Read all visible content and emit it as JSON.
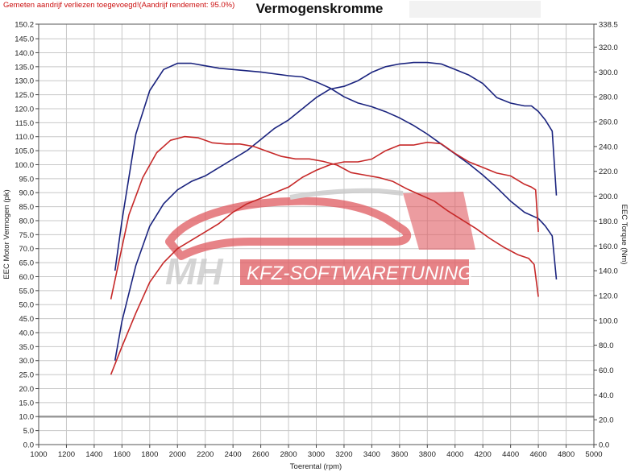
{
  "header": {
    "note": "Gemeten aandrijf verliezen toegevoegd!(Aandrijf rendement: 95.0%)",
    "title": "Vermogenskromme"
  },
  "watermark": {
    "text_left": "MH",
    "text_right": "KFZ-SOFTWARETUNING",
    "color_red": "#e05a60",
    "color_gray": "#c8c8c8"
  },
  "chart_data": {
    "type": "line",
    "title": "Vermogenskromme",
    "xlabel": "Toerental (rpm)",
    "ylabel": "EEC Motor Vermogen (pk)",
    "y2label": "EEC Torque (Nm)",
    "xlim": [
      1000,
      5000
    ],
    "ylim": [
      0,
      150.2
    ],
    "y2lim": [
      0,
      338.5
    ],
    "grid": true,
    "x_ticks": [
      1000,
      1200,
      1400,
      1600,
      1800,
      2000,
      2200,
      2400,
      2600,
      2800,
      3000,
      3200,
      3400,
      3600,
      3800,
      4000,
      4200,
      4400,
      4600,
      4800,
      5000
    ],
    "y_ticks": [
      0.0,
      5.0,
      10.0,
      15.0,
      20.0,
      25.0,
      30.0,
      35.0,
      40.0,
      45.0,
      50.0,
      55.0,
      60.0,
      65.0,
      70.0,
      75.0,
      80.0,
      85.0,
      90.0,
      95.0,
      100.0,
      105.0,
      110.0,
      115.0,
      120.0,
      125.0,
      130.0,
      135.0,
      140.0,
      145.0,
      150.2
    ],
    "y_tick_labels": [
      "0.0",
      "5.0",
      "10.0",
      "15.0",
      "20.0",
      "25.0",
      "30.0",
      "35.0",
      "40.0",
      "45.0",
      "50.0",
      "55.0",
      "60.0",
      "65.0",
      "70.0",
      "75.0",
      "80.0",
      "85.0",
      "90.0",
      "95.0",
      "100.0",
      "105.0",
      "110.0",
      "115.0",
      "120.0",
      "125.0",
      "130.0",
      "135.0",
      "140.0",
      "145.0",
      "150.2"
    ],
    "y2_ticks": [
      0.0,
      20.0,
      40.0,
      60.0,
      80.0,
      100.0,
      120.0,
      140.0,
      160.0,
      180.0,
      200.0,
      220.0,
      240.0,
      260.0,
      280.0,
      300.0,
      320.0,
      338.5
    ],
    "y2_tick_labels": [
      "0.0",
      "20.0",
      "40.0",
      "60.0",
      "80.0",
      "100.0",
      "120.0",
      "140.0",
      "160.0",
      "180.0",
      "200.0",
      "220.0",
      "240.0",
      "260.0",
      "280.0",
      "300.0",
      "320.0",
      "338.5"
    ],
    "reference_line": {
      "axis": "y",
      "value": 10.0,
      "color": "#999999"
    },
    "series": [
      {
        "role": "power-tuned",
        "axis": "left",
        "color": "#1a237e",
        "points": [
          [
            1550,
            30
          ],
          [
            1600,
            44
          ],
          [
            1700,
            64
          ],
          [
            1800,
            78
          ],
          [
            1900,
            86
          ],
          [
            2000,
            91
          ],
          [
            2100,
            94
          ],
          [
            2200,
            96
          ],
          [
            2300,
            99
          ],
          [
            2400,
            102
          ],
          [
            2500,
            105
          ],
          [
            2600,
            109
          ],
          [
            2700,
            113
          ],
          [
            2800,
            116
          ],
          [
            2900,
            120
          ],
          [
            3000,
            124
          ],
          [
            3100,
            127
          ],
          [
            3200,
            128
          ],
          [
            3300,
            130
          ],
          [
            3400,
            133
          ],
          [
            3500,
            135
          ],
          [
            3600,
            136
          ],
          [
            3700,
            136.5
          ],
          [
            3800,
            136.5
          ],
          [
            3900,
            136
          ],
          [
            4000,
            134
          ],
          [
            4100,
            132
          ],
          [
            4200,
            129
          ],
          [
            4300,
            124
          ],
          [
            4400,
            122
          ],
          [
            4500,
            121
          ],
          [
            4550,
            121
          ],
          [
            4600,
            119
          ],
          [
            4650,
            116
          ],
          [
            4700,
            112
          ],
          [
            4730,
            89
          ]
        ]
      },
      {
        "role": "torque-tuned",
        "axis": "right",
        "color": "#1a237e",
        "points": [
          [
            1550,
            140
          ],
          [
            1600,
            180
          ],
          [
            1700,
            250
          ],
          [
            1800,
            285
          ],
          [
            1900,
            302
          ],
          [
            2000,
            307
          ],
          [
            2100,
            307
          ],
          [
            2200,
            305
          ],
          [
            2300,
            303
          ],
          [
            2400,
            302
          ],
          [
            2600,
            300
          ],
          [
            2800,
            297
          ],
          [
            2900,
            296
          ],
          [
            3000,
            292
          ],
          [
            3100,
            287
          ],
          [
            3200,
            280
          ],
          [
            3300,
            275
          ],
          [
            3400,
            272
          ],
          [
            3500,
            268
          ],
          [
            3600,
            263
          ],
          [
            3700,
            257
          ],
          [
            3800,
            250
          ],
          [
            3900,
            242
          ],
          [
            4000,
            234
          ],
          [
            4100,
            226
          ],
          [
            4200,
            217
          ],
          [
            4300,
            207
          ],
          [
            4400,
            196
          ],
          [
            4500,
            187
          ],
          [
            4600,
            182
          ],
          [
            4650,
            176
          ],
          [
            4700,
            168
          ],
          [
            4730,
            133
          ]
        ]
      },
      {
        "role": "power-stock",
        "axis": "left",
        "color": "#c62828",
        "points": [
          [
            1520,
            25
          ],
          [
            1600,
            35
          ],
          [
            1700,
            47
          ],
          [
            1800,
            58
          ],
          [
            1900,
            65
          ],
          [
            2000,
            70
          ],
          [
            2100,
            73
          ],
          [
            2200,
            76
          ],
          [
            2300,
            79
          ],
          [
            2400,
            83
          ],
          [
            2500,
            86
          ],
          [
            2600,
            88
          ],
          [
            2700,
            90
          ],
          [
            2800,
            92
          ],
          [
            2900,
            95.5
          ],
          [
            3000,
            98
          ],
          [
            3100,
            100
          ],
          [
            3200,
            101
          ],
          [
            3300,
            101
          ],
          [
            3400,
            102
          ],
          [
            3500,
            105
          ],
          [
            3600,
            107
          ],
          [
            3700,
            107
          ],
          [
            3800,
            108
          ],
          [
            3900,
            107.5
          ],
          [
            4000,
            104
          ],
          [
            4100,
            101
          ],
          [
            4200,
            99
          ],
          [
            4300,
            97
          ],
          [
            4400,
            96
          ],
          [
            4500,
            93
          ],
          [
            4550,
            92
          ],
          [
            4580,
            91
          ],
          [
            4600,
            76
          ]
        ]
      },
      {
        "role": "torque-stock",
        "axis": "right",
        "color": "#c62828",
        "points": [
          [
            1520,
            117
          ],
          [
            1560,
            138
          ],
          [
            1650,
            185
          ],
          [
            1750,
            215
          ],
          [
            1850,
            235
          ],
          [
            1950,
            245
          ],
          [
            2050,
            248
          ],
          [
            2150,
            247
          ],
          [
            2250,
            243
          ],
          [
            2350,
            242
          ],
          [
            2450,
            242
          ],
          [
            2550,
            240
          ],
          [
            2650,
            236
          ],
          [
            2750,
            232
          ],
          [
            2850,
            230
          ],
          [
            2950,
            230
          ],
          [
            3050,
            228
          ],
          [
            3150,
            225
          ],
          [
            3250,
            219
          ],
          [
            3350,
            217
          ],
          [
            3450,
            215
          ],
          [
            3550,
            212
          ],
          [
            3650,
            206
          ],
          [
            3750,
            201
          ],
          [
            3850,
            196
          ],
          [
            3950,
            188
          ],
          [
            4050,
            181
          ],
          [
            4150,
            174
          ],
          [
            4250,
            166
          ],
          [
            4350,
            159
          ],
          [
            4450,
            153
          ],
          [
            4530,
            150
          ],
          [
            4570,
            145
          ],
          [
            4600,
            119
          ]
        ]
      }
    ]
  }
}
